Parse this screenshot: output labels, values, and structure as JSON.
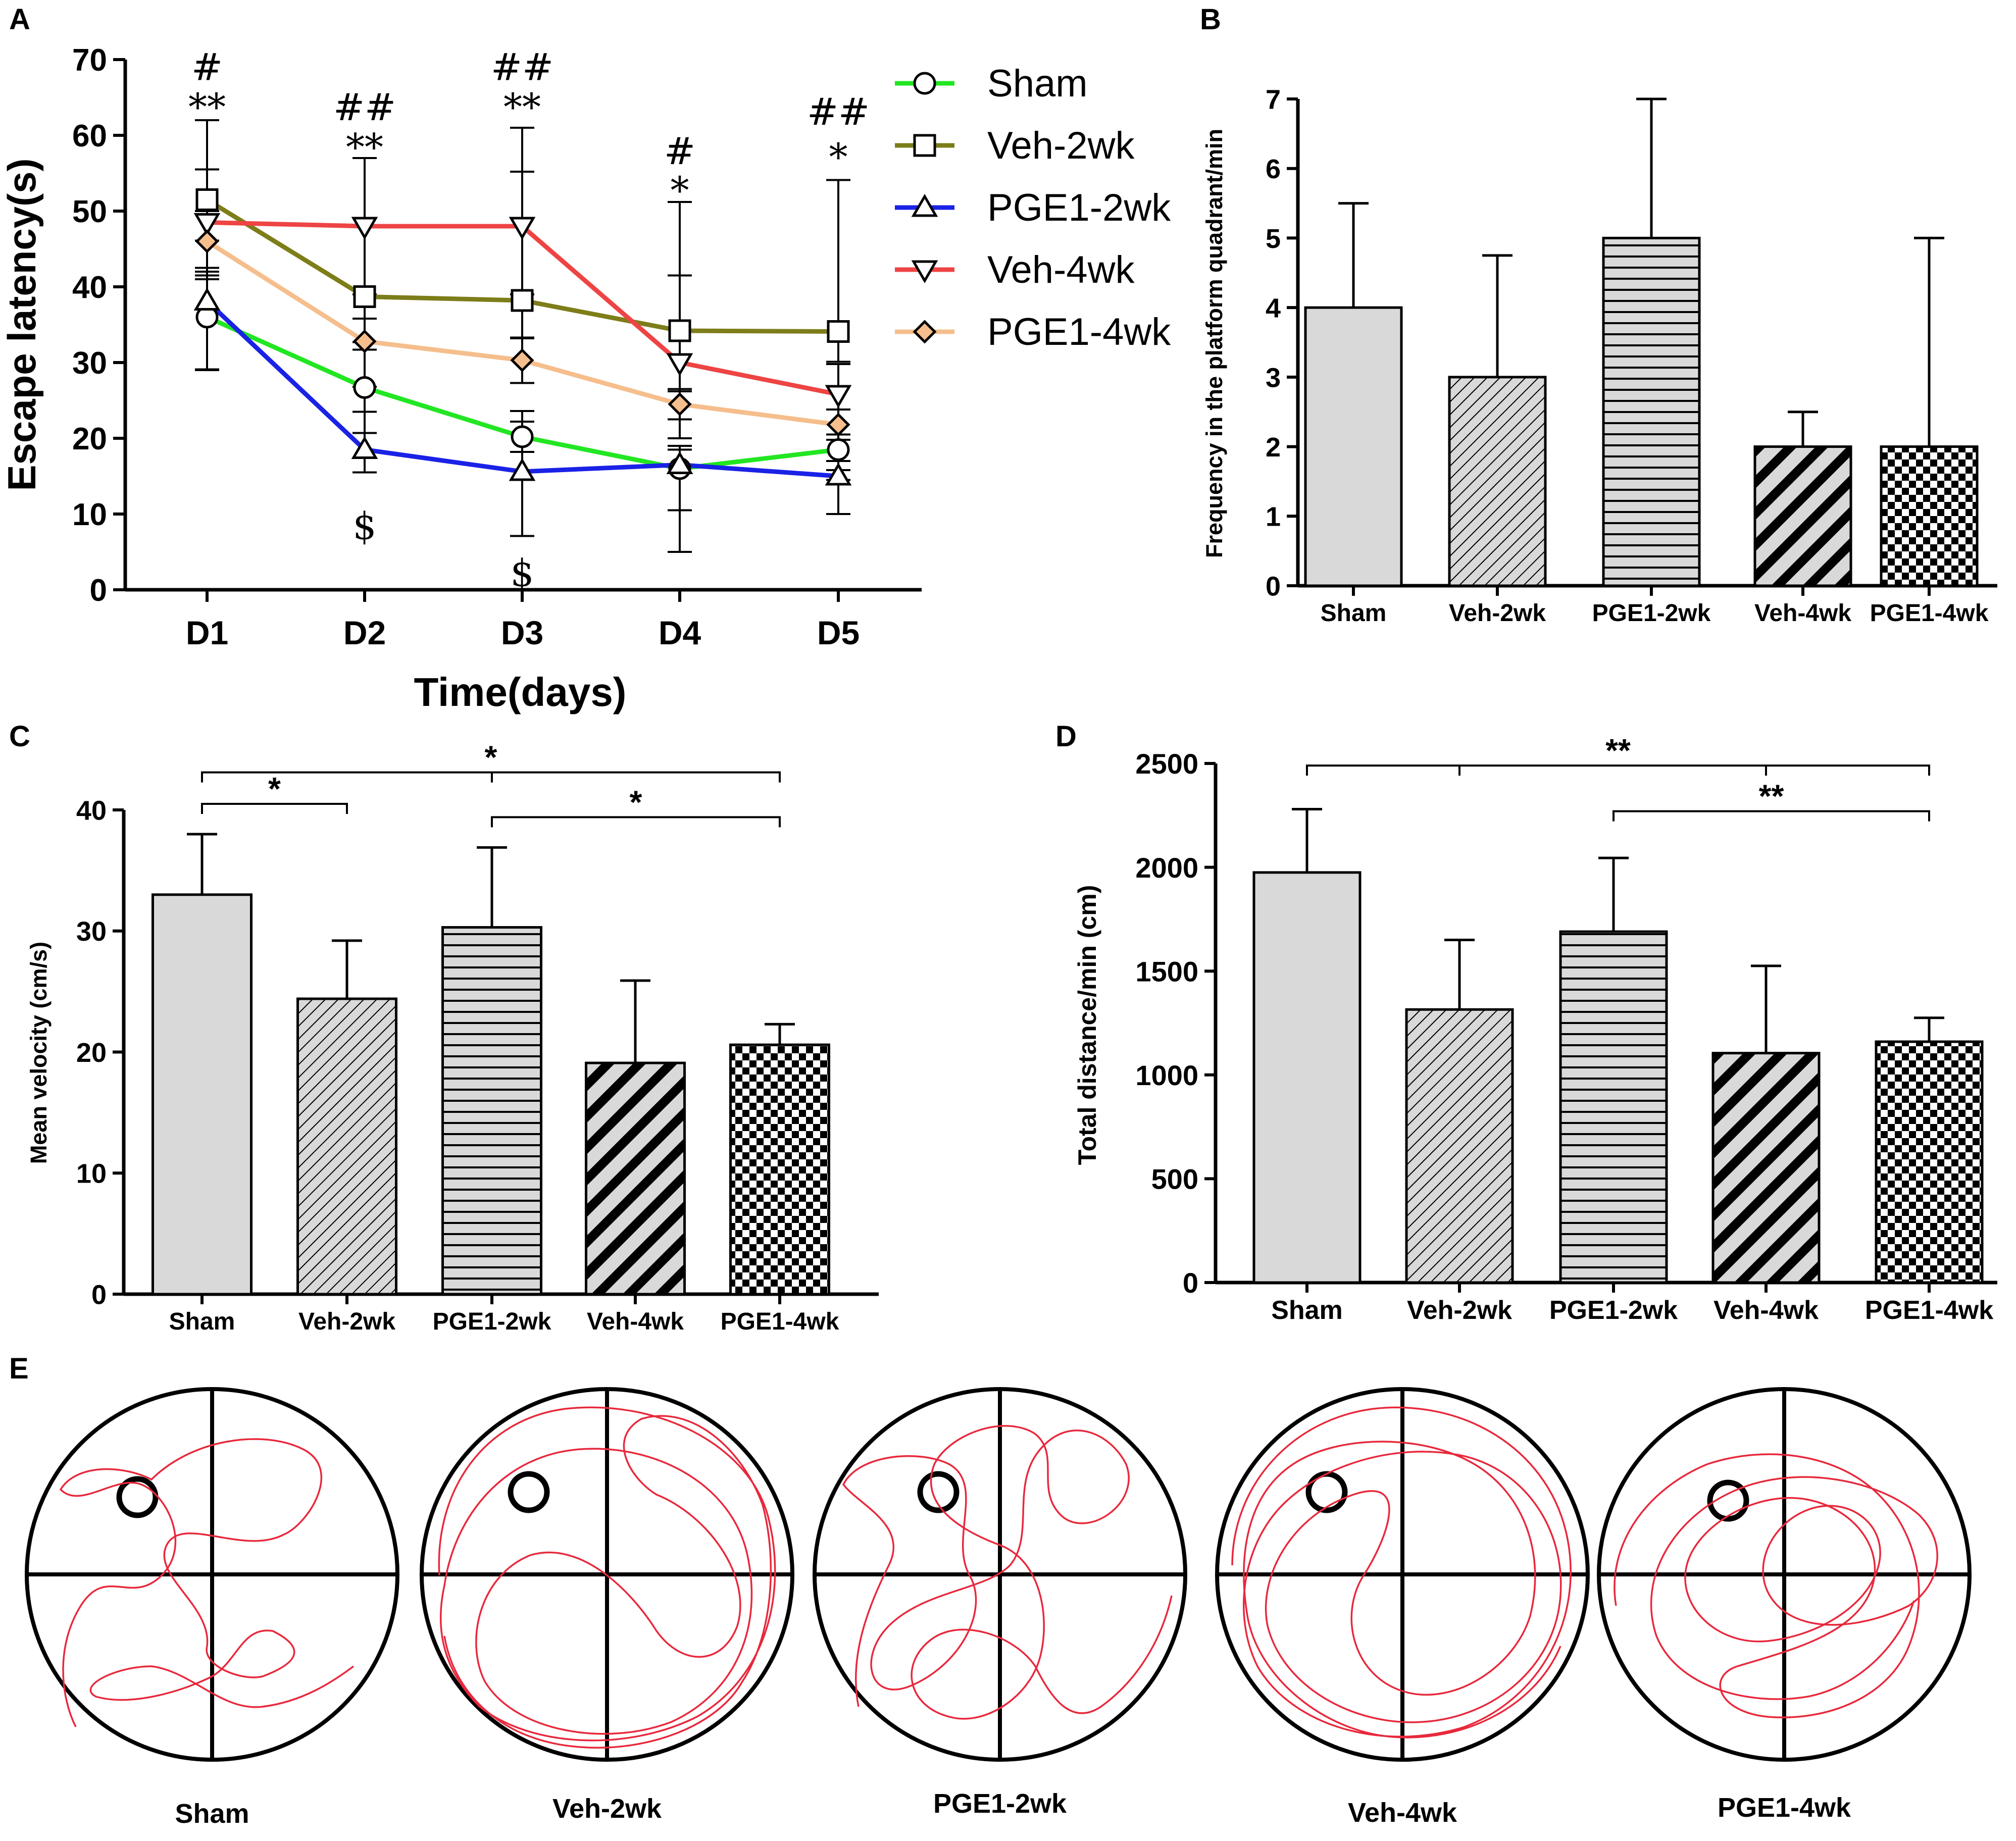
{
  "panel_labels": [
    "A",
    "B",
    "C",
    "D",
    "E"
  ],
  "chart_data": [
    {
      "panel": "A",
      "type": "line",
      "title": "",
      "xlabel": "Time(days)",
      "ylabel": "Escape latency(s)",
      "categories": [
        "D1",
        "D2",
        "D3",
        "D4",
        "D5"
      ],
      "ylim": [
        0,
        70
      ],
      "yticks": [
        0,
        10,
        20,
        30,
        40,
        50,
        60,
        70
      ],
      "legend_position": "right",
      "series": [
        {
          "name": "Sham",
          "color": "#22e622",
          "marker": "circle",
          "values": [
            36,
            26.7,
            20.2,
            16,
            18.5
          ],
          "err_up": [
            6,
            5,
            2,
            3,
            2
          ],
          "err_down": [
            7,
            6,
            2,
            11,
            4
          ]
        },
        {
          "name": "Veh-2wk",
          "color": "#7d7d1a",
          "marker": "square",
          "values": [
            51.5,
            38.7,
            38.2,
            34.2,
            34.1
          ],
          "err_up": [
            4,
            18.3,
            17,
            17,
            20
          ],
          "err_down": [
            10,
            6,
            5,
            8,
            4
          ]
        },
        {
          "name": "PGE1-2wk",
          "color": "#1a22e6",
          "marker": "triangle-up",
          "values": [
            38.1,
            18.5,
            15.6,
            16.5,
            15
          ],
          "err_up": [
            8,
            5,
            8,
            2,
            2
          ],
          "err_down": [
            9,
            3,
            8.5,
            6,
            5
          ]
        },
        {
          "name": "Veh-4wk",
          "color": "#ee4444",
          "marker": "triangle-down",
          "values": [
            48.5,
            48,
            48,
            30,
            25.8
          ],
          "err_up": [
            13.5,
            9,
            13,
            11.5,
            4
          ],
          "err_down": [
            6,
            9,
            9,
            10,
            10
          ]
        },
        {
          "name": "PGE1-4wk",
          "color": "#f5be8c",
          "marker": "diamond",
          "values": [
            46,
            32.8,
            30.3,
            24.5,
            21.8
          ],
          "err_up": [
            4,
            3,
            3,
            2,
            2
          ],
          "err_down": [
            5,
            6,
            3,
            2,
            2
          ]
        }
      ],
      "annotations": [
        {
          "category": "D1",
          "text": "#",
          "value": 67.3
        },
        {
          "category": "D1",
          "text": "**",
          "value": 62
        },
        {
          "category": "D2",
          "text": "##",
          "value": 62
        },
        {
          "category": "D2",
          "text": "**",
          "value": 56.7
        },
        {
          "category": "D2",
          "text": "$",
          "value": 6.7
        },
        {
          "category": "D3",
          "text": "##",
          "value": 67.3
        },
        {
          "category": "D3",
          "text": "**",
          "value": 62
        },
        {
          "category": "D3",
          "text": "$",
          "value": 0.5
        },
        {
          "category": "D4",
          "text": "#",
          "value": 56.2
        },
        {
          "category": "D4",
          "text": "*",
          "value": 51
        },
        {
          "category": "D5",
          "text": "##",
          "value": 61.4
        },
        {
          "category": "D5",
          "text": "*",
          "value": 55.4
        }
      ]
    },
    {
      "panel": "B",
      "type": "bar",
      "title": "",
      "xlabel": "",
      "ylabel": "Frequency in the platform quadrant/min",
      "categories": [
        "Sham",
        "Veh-2wk",
        "PGE1-2wk",
        "Veh-4wk",
        "PGE1-4wk"
      ],
      "values": [
        4,
        3,
        5,
        2,
        2
      ],
      "errors": [
        1.5,
        1.75,
        2,
        0.5,
        3
      ],
      "patterns": [
        "solid",
        "diag-fine",
        "horizontal",
        "diag-bold",
        "checker"
      ],
      "ylim": [
        0,
        7
      ],
      "yticks": [
        0,
        1,
        2,
        3,
        4,
        5,
        6,
        7
      ]
    },
    {
      "panel": "C",
      "type": "bar",
      "title": "",
      "xlabel": "",
      "ylabel": "Mean velocity (cm/s)",
      "categories": [
        "Sham",
        "Veh-2wk",
        "PGE1-2wk",
        "Veh-4wk",
        "PGE1-4wk"
      ],
      "values": [
        33,
        24.4,
        30.3,
        19.1,
        20.6
      ],
      "errors": [
        5,
        4.8,
        6.6,
        6.8,
        1.7
      ],
      "patterns": [
        "solid",
        "diag-fine",
        "horizontal",
        "diag-bold",
        "checker"
      ],
      "ylim": [
        0,
        40
      ],
      "yticks": [
        0,
        10,
        20,
        30,
        40
      ],
      "significance": [
        {
          "from": "Sham",
          "to": "Veh-2wk",
          "text": "*",
          "value": 40.5
        },
        {
          "from": "Sham",
          "to": "PGE1-4wk",
          "text": "*",
          "value": 43.1,
          "mid_ticks": [
            "PGE1-2wk"
          ]
        },
        {
          "from": "PGE1-2wk",
          "to": "PGE1-4wk",
          "text": "*",
          "value": 39.4
        }
      ]
    },
    {
      "panel": "D",
      "type": "bar",
      "title": "",
      "xlabel": "",
      "ylabel": "Total distance/min (cm)",
      "categories": [
        "Sham",
        "Veh-2wk",
        "PGE1-2wk",
        "Veh-4wk",
        "PGE1-4wk"
      ],
      "values": [
        1975,
        1315,
        1690,
        1105,
        1160
      ],
      "errors": [
        305,
        335,
        355,
        420,
        115
      ],
      "patterns": [
        "solid",
        "diag-fine",
        "horizontal",
        "diag-bold",
        "checker"
      ],
      "ylim": [
        0,
        2500
      ],
      "yticks": [
        0,
        500,
        1000,
        1500,
        2000,
        2500
      ],
      "significance": [
        {
          "from": "Sham",
          "to": "PGE1-4wk",
          "text": "**",
          "value": 2490,
          "mid_ticks": [
            "Veh-2wk",
            "Veh-4wk"
          ]
        },
        {
          "from": "PGE1-2wk",
          "to": "PGE1-4wk",
          "text": "**",
          "value": 2270
        }
      ]
    }
  ],
  "panel_e": {
    "track_color": "#e8283c",
    "labels": [
      "Sham",
      "Veh-2wk",
      "PGE1-2wk",
      "Veh-4wk",
      "PGE1-4wk"
    ]
  }
}
